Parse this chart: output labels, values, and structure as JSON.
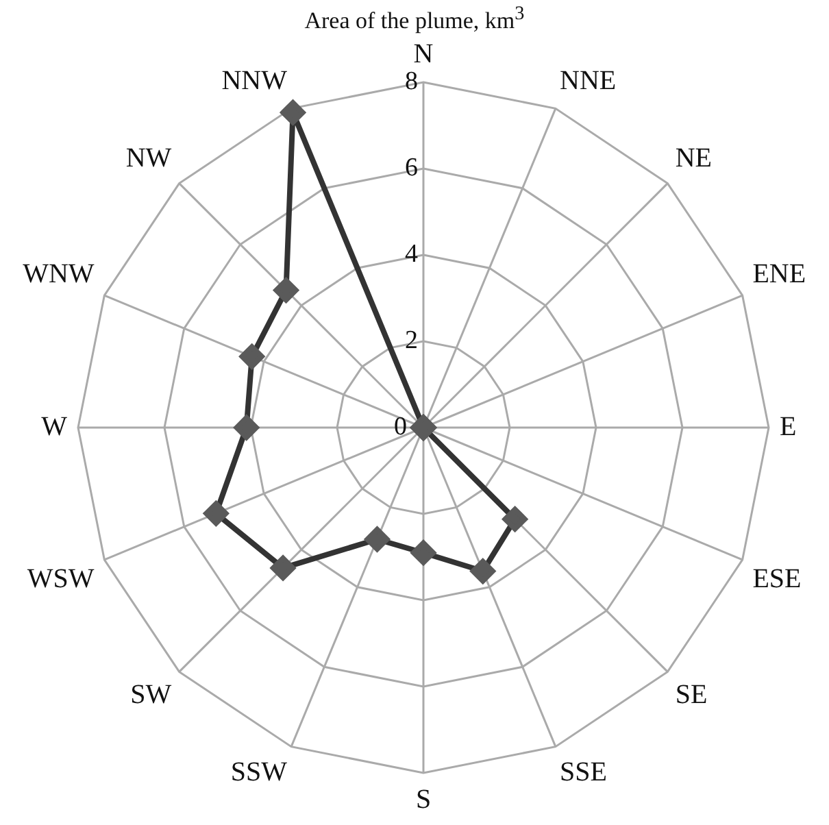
{
  "chart_data": {
    "type": "radar",
    "title": "Area of the plume, km$^{3}$",
    "categories": [
      "N",
      "NNE",
      "NE",
      "ENE",
      "E",
      "ESE",
      "SE",
      "SSE",
      "S",
      "SSW",
      "SW",
      "WSW",
      "W",
      "WNW",
      "NW",
      "NNW"
    ],
    "series": [
      {
        "color": "#333333",
        "values": [
          0,
          0,
          0,
          0,
          0,
          0,
          3.0,
          3.6,
          2.9,
          2.8,
          4.6,
          5.2,
          4.1,
          4.3,
          4.5,
          7.9
        ]
      }
    ],
    "ylim": [
      0,
      8
    ],
    "yticks": [
      0,
      2,
      4,
      6,
      8
    ],
    "grid": true,
    "marker": "diamond",
    "legend": false
  }
}
